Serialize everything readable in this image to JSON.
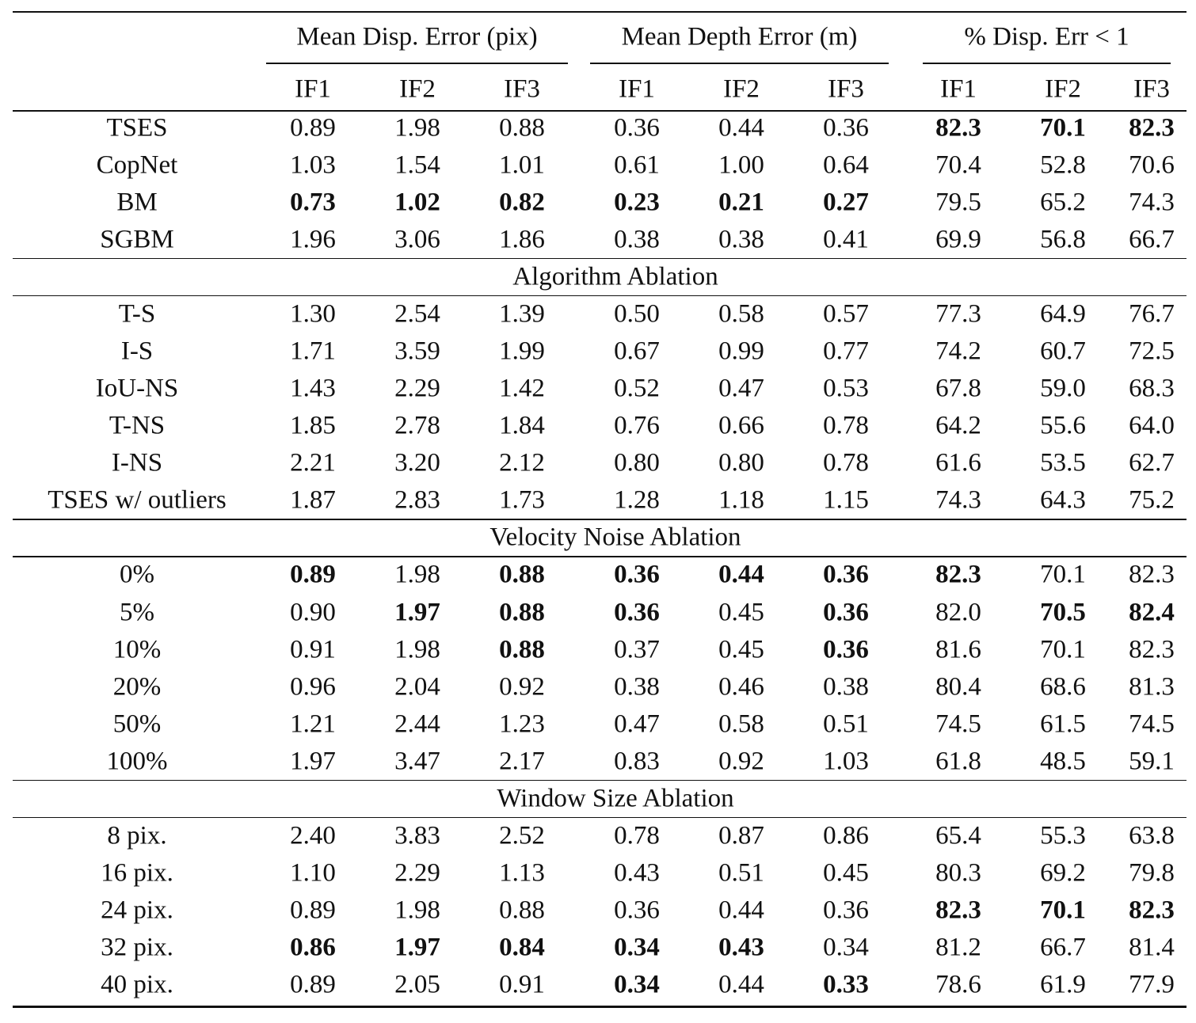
{
  "table": {
    "group_headers": [
      "Mean Disp. Error (pix)",
      "Mean Depth Error (m)",
      "% Disp. Err < 1"
    ],
    "sub_headers": [
      "IF1",
      "IF2",
      "IF3",
      "IF1",
      "IF2",
      "IF3",
      "IF1",
      "IF2",
      "IF3"
    ],
    "sections": [
      {
        "rows": [
          {
            "label": "TSES",
            "cells": [
              "0.89",
              "1.98",
              "0.88",
              "0.36",
              "0.44",
              "0.36",
              "82.3",
              "70.1",
              "82.3"
            ],
            "bold": [
              6,
              7,
              8
            ]
          },
          {
            "label": "CopNet",
            "cells": [
              "1.03",
              "1.54",
              "1.01",
              "0.61",
              "1.00",
              "0.64",
              "70.4",
              "52.8",
              "70.6"
            ],
            "bold": []
          },
          {
            "label": "BM",
            "cells": [
              "0.73",
              "1.02",
              "0.82",
              "0.23",
              "0.21",
              "0.27",
              "79.5",
              "65.2",
              "74.3"
            ],
            "bold": [
              0,
              1,
              2,
              3,
              4,
              5
            ]
          },
          {
            "label": "SGBM",
            "cells": [
              "1.96",
              "3.06",
              "1.86",
              "0.38",
              "0.38",
              "0.41",
              "69.9",
              "56.8",
              "66.7"
            ],
            "bold": []
          }
        ]
      },
      {
        "title": "Algorithm Ablation",
        "rows": [
          {
            "label": "T-S",
            "cells": [
              "1.30",
              "2.54",
              "1.39",
              "0.50",
              "0.58",
              "0.57",
              "77.3",
              "64.9",
              "76.7"
            ],
            "bold": []
          },
          {
            "label": "I-S",
            "cells": [
              "1.71",
              "3.59",
              "1.99",
              "0.67",
              "0.99",
              "0.77",
              "74.2",
              "60.7",
              "72.5"
            ],
            "bold": []
          },
          {
            "label": "IoU-NS",
            "cells": [
              "1.43",
              "2.29",
              "1.42",
              "0.52",
              "0.47",
              "0.53",
              "67.8",
              "59.0",
              "68.3"
            ],
            "bold": []
          },
          {
            "label": "T-NS",
            "cells": [
              "1.85",
              "2.78",
              "1.84",
              "0.76",
              "0.66",
              "0.78",
              "64.2",
              "55.6",
              "64.0"
            ],
            "bold": []
          },
          {
            "label": "I-NS",
            "cells": [
              "2.21",
              "3.20",
              "2.12",
              "0.80",
              "0.80",
              "0.78",
              "61.6",
              "53.5",
              "62.7"
            ],
            "bold": []
          },
          {
            "label": "TSES w/ outliers",
            "cells": [
              "1.87",
              "2.83",
              "1.73",
              "1.28",
              "1.18",
              "1.15",
              "74.3",
              "64.3",
              "75.2"
            ],
            "bold": []
          }
        ]
      },
      {
        "title": "Velocity Noise Ablation",
        "rows": [
          {
            "label": "0%",
            "cells": [
              "0.89",
              "1.98",
              "0.88",
              "0.36",
              "0.44",
              "0.36",
              "82.3",
              "70.1",
              "82.3"
            ],
            "bold": [
              0,
              2,
              3,
              4,
              5,
              6
            ]
          },
          {
            "label": "5%",
            "cells": [
              "0.90",
              "1.97",
              "0.88",
              "0.36",
              "0.45",
              "0.36",
              "82.0",
              "70.5",
              "82.4"
            ],
            "bold": [
              1,
              2,
              3,
              5,
              7,
              8
            ]
          },
          {
            "label": "10%",
            "cells": [
              "0.91",
              "1.98",
              "0.88",
              "0.37",
              "0.45",
              "0.36",
              "81.6",
              "70.1",
              "82.3"
            ],
            "bold": [
              2,
              5
            ]
          },
          {
            "label": "20%",
            "cells": [
              "0.96",
              "2.04",
              "0.92",
              "0.38",
              "0.46",
              "0.38",
              "80.4",
              "68.6",
              "81.3"
            ],
            "bold": []
          },
          {
            "label": "50%",
            "cells": [
              "1.21",
              "2.44",
              "1.23",
              "0.47",
              "0.58",
              "0.51",
              "74.5",
              "61.5",
              "74.5"
            ],
            "bold": []
          },
          {
            "label": "100%",
            "cells": [
              "1.97",
              "3.47",
              "2.17",
              "0.83",
              "0.92",
              "1.03",
              "61.8",
              "48.5",
              "59.1"
            ],
            "bold": []
          }
        ]
      },
      {
        "title": "Window Size Ablation",
        "rows": [
          {
            "label": "8 pix.",
            "cells": [
              "2.40",
              "3.83",
              "2.52",
              "0.78",
              "0.87",
              "0.86",
              "65.4",
              "55.3",
              "63.8"
            ],
            "bold": []
          },
          {
            "label": "16 pix.",
            "cells": [
              "1.10",
              "2.29",
              "1.13",
              "0.43",
              "0.51",
              "0.45",
              "80.3",
              "69.2",
              "79.8"
            ],
            "bold": []
          },
          {
            "label": "24 pix.",
            "cells": [
              "0.89",
              "1.98",
              "0.88",
              "0.36",
              "0.44",
              "0.36",
              "82.3",
              "70.1",
              "82.3"
            ],
            "bold": [
              6,
              7,
              8
            ]
          },
          {
            "label": "32 pix.",
            "cells": [
              "0.86",
              "1.97",
              "0.84",
              "0.34",
              "0.43",
              "0.34",
              "81.2",
              "66.7",
              "81.4"
            ],
            "bold": [
              0,
              1,
              2,
              3,
              4
            ]
          },
          {
            "label": "40 pix.",
            "cells": [
              "0.89",
              "2.05",
              "0.91",
              "0.34",
              "0.44",
              "0.33",
              "78.6",
              "61.9",
              "77.9"
            ],
            "bold": [
              3,
              5
            ]
          }
        ]
      }
    ]
  }
}
